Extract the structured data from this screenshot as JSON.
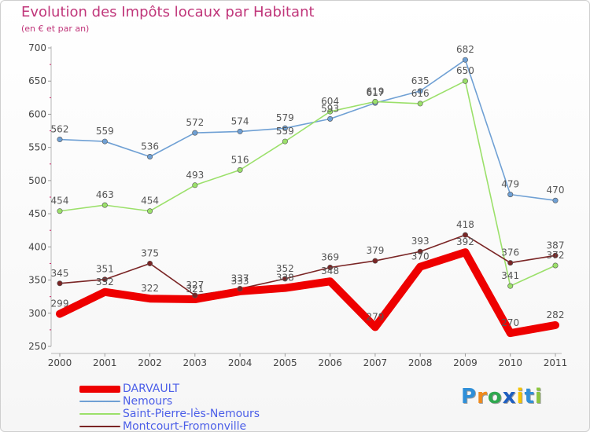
{
  "chart_data": {
    "type": "line",
    "title": "Evolution des Impôts locaux par Habitant",
    "subtitle": "(en € et par an)",
    "xlabel": "",
    "ylabel": "",
    "x": [
      "2000",
      "2001",
      "2002",
      "2003",
      "2004",
      "2005",
      "2006",
      "2007",
      "2008",
      "2009",
      "2010",
      "2011"
    ],
    "ylim": [
      250,
      700
    ],
    "yticks": [
      250,
      300,
      350,
      400,
      450,
      500,
      550,
      600,
      650,
      700
    ],
    "grid": false,
    "legend_position": "bottom-left",
    "series": [
      {
        "name": "DARVAULT",
        "color": "#ee0000",
        "values": [
          299,
          332,
          322,
          321,
          333,
          338,
          348,
          279,
          370,
          392,
          270,
          282
        ]
      },
      {
        "name": "Nemours",
        "color": "#6fa0d4",
        "values": [
          562,
          559,
          536,
          572,
          574,
          579,
          593,
          617,
          635,
          682,
          479,
          470
        ]
      },
      {
        "name": "Saint-Pierre-lès-Nemours",
        "color": "#9be06a",
        "values": [
          454,
          463,
          454,
          493,
          516,
          559,
          604,
          619,
          616,
          650,
          341,
          372
        ]
      },
      {
        "name": "Montcourt-Fromonville",
        "color": "#7a2525",
        "values": [
          345,
          351,
          375,
          327,
          337,
          352,
          369,
          379,
          393,
          418,
          376,
          387
        ]
      }
    ]
  },
  "brand": {
    "letters": [
      "P",
      "r",
      "o",
      "x",
      "i",
      "t",
      "i"
    ],
    "colors": [
      "#2f8fd8",
      "#f08a1c",
      "#2fa84f",
      "#1f5fc0",
      "#f5c400",
      "#2f8fd8",
      "#8cc63f"
    ]
  }
}
